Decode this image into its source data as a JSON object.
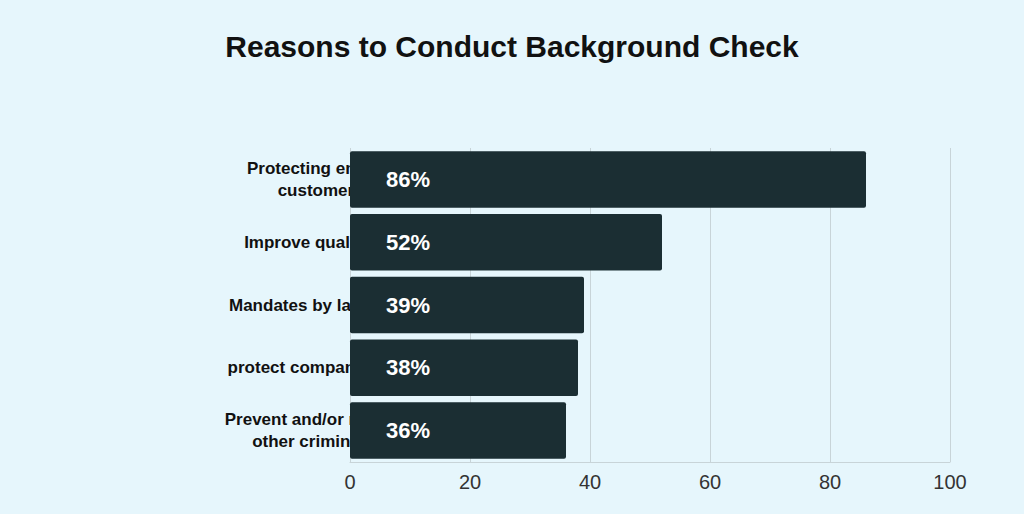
{
  "chart_data": {
    "type": "bar",
    "title": "Reasons to Conduct Background Check",
    "orientation": "horizontal",
    "categories": [
      "Protecting employees, customers, etc.",
      "Improve quality of hires",
      "Mandates by law/regulation",
      "protect company reputation",
      "Prevent and/or reduce theft. other criminal activity"
    ],
    "values": [
      86,
      52,
      39,
      38,
      36
    ],
    "value_labels": [
      "86%",
      "52%",
      "39%",
      "38%",
      "36%"
    ],
    "data_labels": true,
    "color": "#1b2e33",
    "xlim": [
      0,
      100
    ],
    "xticks": [
      0,
      20,
      40,
      60,
      80,
      100
    ],
    "grid": true
  }
}
